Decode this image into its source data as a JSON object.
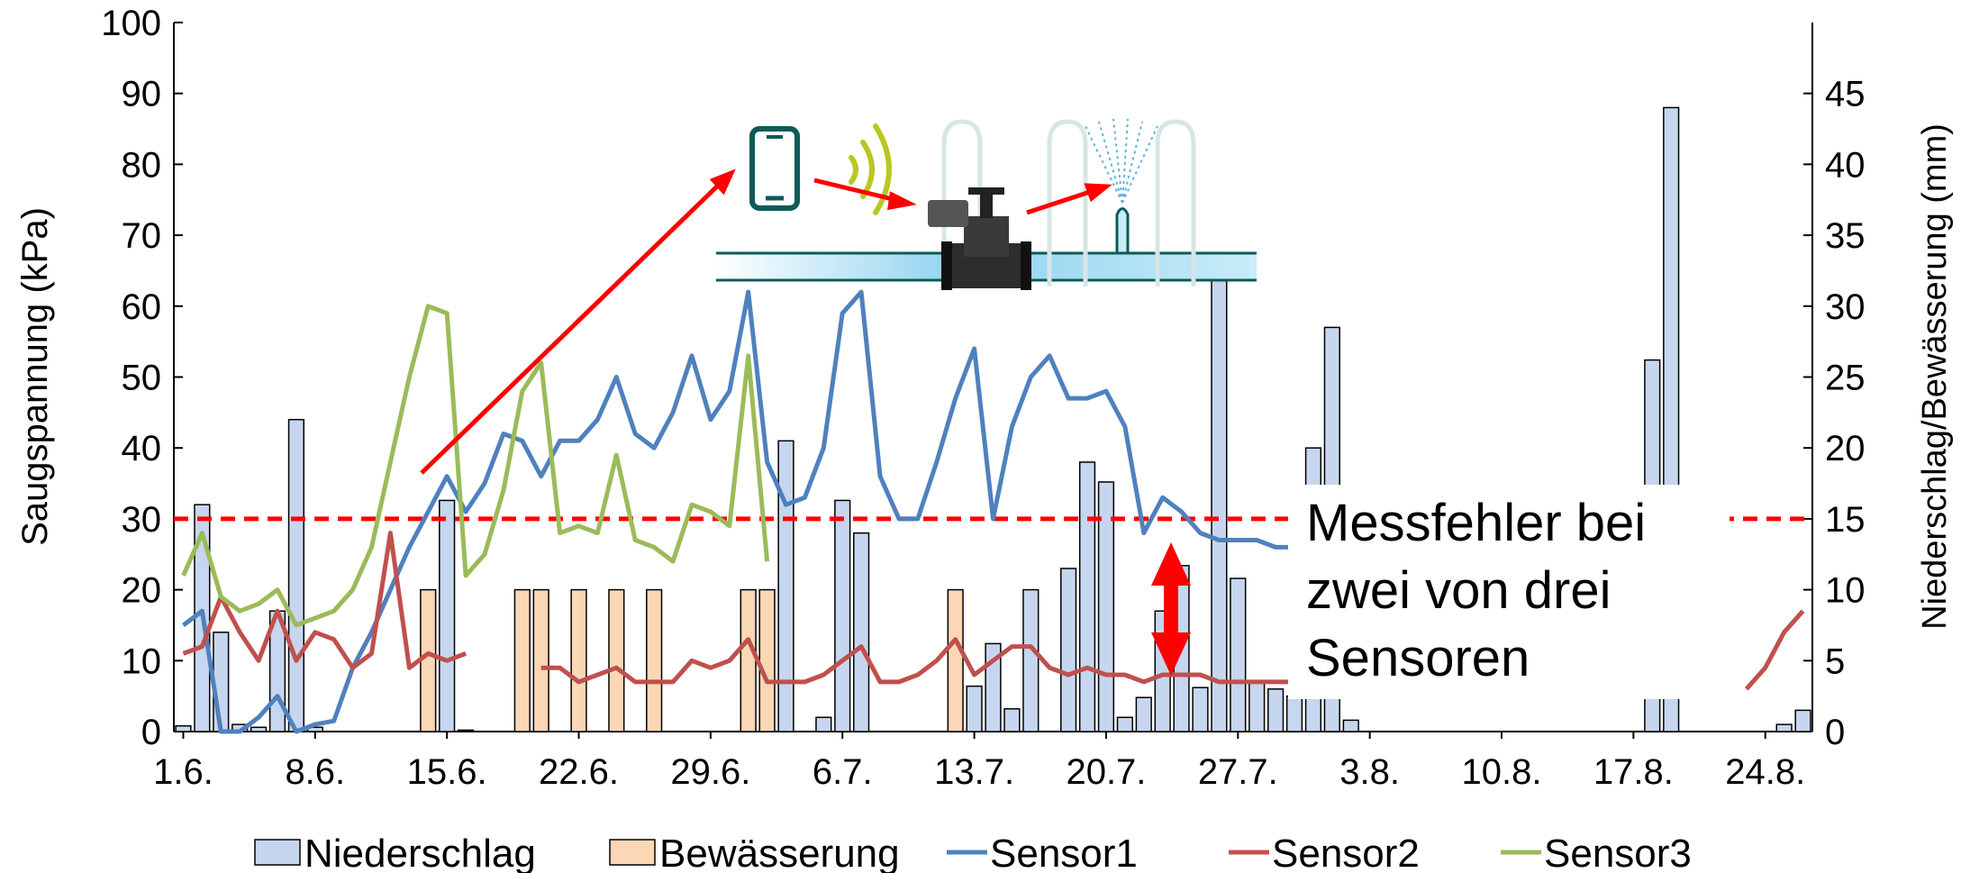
{
  "chart_data": {
    "type": "bar+line",
    "x_labels": [
      "1.6.",
      "8.6.",
      "15.6.",
      "22.6.",
      "29.6.",
      "6.7.",
      "13.7.",
      "20.7.",
      "27.7.",
      "3.8.",
      "10.8.",
      "17.8.",
      "24.8."
    ],
    "x_label_days": [
      0,
      7,
      14,
      21,
      28,
      35,
      42,
      49,
      56,
      63,
      70,
      77,
      84
    ],
    "xlim": [
      -0.5,
      86.5
    ],
    "ylabel": "Saugspannung (kPa)",
    "ylim": [
      0,
      100
    ],
    "yticks": [
      0,
      10,
      20,
      30,
      40,
      50,
      60,
      70,
      80,
      90,
      100
    ],
    "y2label": "Niederschlag/Bewässerung (mm)",
    "y2lim": [
      0,
      50
    ],
    "y2ticks": [
      0,
      5,
      10,
      15,
      20,
      25,
      30,
      35,
      40,
      45
    ],
    "legend_position": "bottom",
    "bars": [
      {
        "name": "Niederschlag",
        "color": "#c6d6ee",
        "axis": "right",
        "points": [
          [
            0,
            0.4
          ],
          [
            1,
            16
          ],
          [
            2,
            7
          ],
          [
            3,
            0.5
          ],
          [
            4,
            0.3
          ],
          [
            5,
            8.5
          ],
          [
            6,
            22
          ],
          [
            7,
            0.3
          ],
          [
            14,
            16.3
          ],
          [
            15,
            0.1
          ],
          [
            32,
            20.5
          ],
          [
            34,
            1
          ],
          [
            35,
            16.3
          ],
          [
            36,
            14
          ],
          [
            42,
            3.2
          ],
          [
            43,
            6.2
          ],
          [
            44,
            1.6
          ],
          [
            45,
            10
          ],
          [
            47,
            11.5
          ],
          [
            48,
            19
          ],
          [
            49,
            17.6
          ],
          [
            50,
            1
          ],
          [
            51,
            2.4
          ],
          [
            52,
            8.5
          ],
          [
            53,
            11.7
          ],
          [
            54,
            3.1
          ],
          [
            55,
            32
          ],
          [
            56,
            10.8
          ],
          [
            57,
            3.5
          ],
          [
            58,
            3
          ],
          [
            59,
            2.5
          ],
          [
            60,
            20
          ],
          [
            61,
            28.5
          ],
          [
            62,
            0.8
          ],
          [
            78,
            26.2
          ],
          [
            79,
            44
          ],
          [
            85,
            0.5
          ],
          [
            86,
            1.5
          ]
        ]
      },
      {
        "name": "Bewässerung",
        "color": "#fbd7b5",
        "axis": "right",
        "points": [
          [
            13,
            10
          ],
          [
            18,
            10
          ],
          [
            19,
            10
          ],
          [
            21,
            10
          ],
          [
            23,
            10
          ],
          [
            25,
            10
          ],
          [
            30,
            10
          ],
          [
            31,
            10
          ],
          [
            41,
            10
          ]
        ]
      }
    ],
    "series": [
      {
        "name": "Sensor1",
        "color": "#4f81bd",
        "axis": "left",
        "points": [
          [
            0,
            15
          ],
          [
            1,
            17
          ],
          [
            2,
            0
          ],
          [
            3,
            0
          ],
          [
            4,
            2
          ],
          [
            5,
            5
          ],
          [
            6,
            0
          ],
          [
            7,
            1
          ],
          [
            8,
            1.5
          ],
          [
            9,
            9
          ],
          [
            10,
            14
          ],
          [
            11,
            20
          ],
          [
            12,
            26
          ],
          [
            13,
            31
          ],
          [
            14,
            36
          ],
          [
            15,
            31
          ],
          [
            16,
            35
          ],
          [
            17,
            42
          ],
          [
            18,
            41
          ],
          [
            19,
            36
          ],
          [
            20,
            41
          ],
          [
            21,
            41
          ],
          [
            22,
            44
          ],
          [
            23,
            50
          ],
          [
            24,
            42
          ],
          [
            25,
            40
          ],
          [
            26,
            45
          ],
          [
            27,
            53
          ],
          [
            28,
            44
          ],
          [
            29,
            48
          ],
          [
            30,
            62
          ],
          [
            31,
            38
          ],
          [
            32,
            32
          ],
          [
            33,
            33
          ],
          [
            34,
            40
          ],
          [
            35,
            59
          ],
          [
            36,
            62
          ],
          [
            37,
            36
          ],
          [
            38,
            30
          ],
          [
            39,
            30
          ],
          [
            40,
            38
          ],
          [
            41,
            47
          ],
          [
            42,
            54
          ],
          [
            43,
            30
          ],
          [
            44,
            43
          ],
          [
            45,
            50
          ],
          [
            46,
            53
          ],
          [
            47,
            47
          ],
          [
            48,
            47
          ],
          [
            49,
            48
          ],
          [
            50,
            43
          ],
          [
            51,
            28
          ],
          [
            52,
            33
          ],
          [
            53,
            31
          ],
          [
            54,
            28
          ],
          [
            55,
            27
          ],
          [
            56,
            27
          ],
          [
            57,
            27
          ],
          [
            58,
            26
          ],
          [
            59,
            26
          ],
          [
            60,
            27
          ],
          [
            61,
            27
          ],
          [
            62,
            27
          ]
        ]
      },
      {
        "name": "Sensor2",
        "color": "#c0504d",
        "axis": "left",
        "points": [
          [
            0,
            11
          ],
          [
            1,
            12
          ],
          [
            2,
            19
          ],
          [
            3,
            14
          ],
          [
            4,
            10
          ],
          [
            5,
            17
          ],
          [
            6,
            10
          ],
          [
            7,
            14
          ],
          [
            8,
            13
          ],
          [
            9,
            9
          ],
          [
            10,
            11
          ],
          [
            11,
            28
          ],
          [
            12,
            9
          ],
          [
            13,
            11
          ],
          [
            14,
            10
          ],
          [
            15,
            11
          ],
          null,
          [
            19,
            9
          ],
          [
            20,
            9
          ],
          [
            21,
            7
          ],
          [
            22,
            8
          ],
          [
            23,
            9
          ],
          [
            24,
            7
          ],
          [
            25,
            7
          ],
          [
            26,
            7
          ],
          [
            27,
            10
          ],
          [
            28,
            9
          ],
          [
            29,
            10
          ],
          [
            30,
            13
          ],
          [
            31,
            7
          ],
          [
            32,
            7
          ],
          [
            33,
            7
          ],
          [
            34,
            8
          ],
          [
            35,
            10
          ],
          [
            36,
            12
          ],
          [
            37,
            7
          ],
          [
            38,
            7
          ],
          [
            39,
            8
          ],
          [
            40,
            10
          ],
          [
            41,
            13
          ],
          [
            42,
            8
          ],
          [
            43,
            10
          ],
          [
            44,
            12
          ],
          [
            45,
            12
          ],
          [
            46,
            9
          ],
          [
            47,
            8
          ],
          [
            48,
            9
          ],
          [
            49,
            8
          ],
          [
            50,
            8
          ],
          [
            51,
            7
          ],
          [
            52,
            8
          ],
          [
            53,
            8
          ],
          [
            54,
            8
          ],
          [
            55,
            7
          ],
          [
            56,
            7
          ],
          [
            57,
            7
          ],
          [
            58,
            7
          ],
          [
            59,
            7
          ],
          [
            60,
            6
          ],
          [
            61,
            6
          ],
          [
            62,
            6
          ],
          null,
          [
            83,
            6
          ],
          [
            84,
            9
          ],
          [
            85,
            14
          ],
          [
            86,
            17
          ]
        ]
      },
      {
        "name": "Sensor3",
        "color": "#9bbb59",
        "axis": "left",
        "points": [
          [
            0,
            22
          ],
          [
            1,
            28
          ],
          [
            2,
            19
          ],
          [
            3,
            17
          ],
          [
            4,
            18
          ],
          [
            5,
            20
          ],
          [
            6,
            15
          ],
          [
            7,
            16
          ],
          [
            8,
            17
          ],
          [
            9,
            20
          ],
          [
            10,
            26
          ],
          [
            11,
            38
          ],
          [
            12,
            50
          ],
          [
            13,
            60
          ],
          [
            14,
            59
          ],
          [
            15,
            22
          ],
          [
            16,
            25
          ],
          [
            17,
            34
          ],
          [
            18,
            48
          ],
          [
            19,
            52
          ],
          [
            20,
            28
          ],
          [
            21,
            29
          ],
          [
            22,
            28
          ],
          [
            23,
            39
          ],
          [
            24,
            27
          ],
          [
            25,
            26
          ],
          [
            26,
            24
          ],
          [
            27,
            32
          ],
          [
            28,
            31
          ],
          [
            29,
            29
          ],
          [
            30,
            53
          ],
          [
            31,
            24
          ]
        ]
      }
    ],
    "threshold": {
      "value": 30,
      "axis": "left",
      "color": "#ff0000",
      "style": "dashed"
    },
    "annotation": {
      "lines": [
        "Messfehler bei",
        "zwei von drei",
        "Sensoren"
      ]
    },
    "inset_illustration": {
      "description_icons": [
        "smartphone-icon",
        "wireless-signal-icon",
        "valve-icon",
        "sprinkler-icon",
        "pipe-icon"
      ]
    }
  }
}
